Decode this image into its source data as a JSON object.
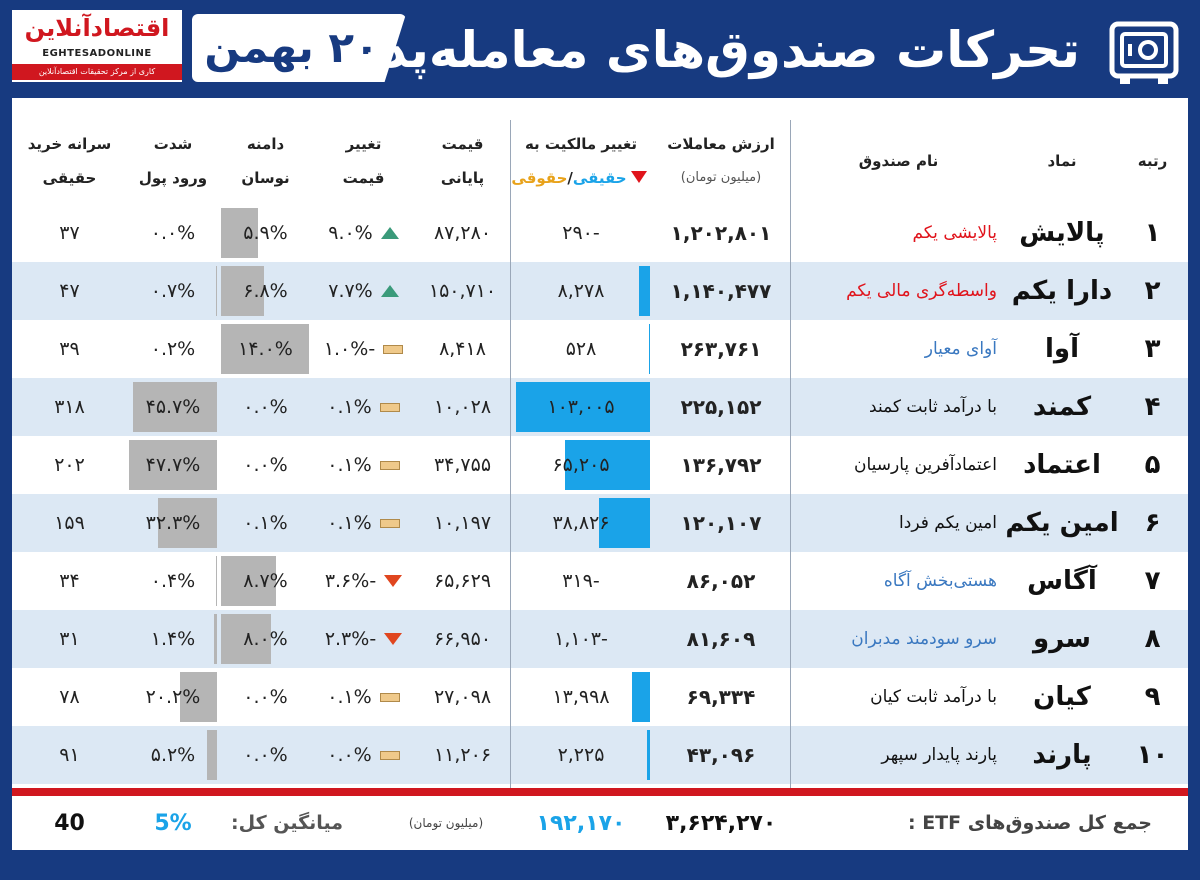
{
  "header": {
    "title": "تحرکات صندوق‌های معامله‌پذیر",
    "date": "۲۰ بهمن",
    "logo": {
      "name": "اقتصادآنلاین",
      "latin": "EGHTESADONLINE",
      "subtitle": "کاری از مرکز تحقیقات اقتصادآنلاین"
    },
    "icon": "safe-icon"
  },
  "columns": {
    "rank": "رتبه",
    "symbol": "نماد",
    "fund_name": "نام صندوق",
    "trade_value_1": "ارزش معاملات",
    "trade_value_2": "(میلیون تومان)",
    "ownership_1": "تغییر مالکیت به",
    "ownership_real": "حقیقی",
    "ownership_sep": "/",
    "ownership_legal": "حقوقی",
    "close_price_1": "قیمت",
    "close_price_2": "پایانی",
    "price_change_1": "تغییر",
    "price_change_2": "قیمت",
    "range_1": "دامنه",
    "range_2": "نوسان",
    "inflow_1": "شدت",
    "inflow_2": "ورود پول",
    "per_capita_1": "سرانه خرید",
    "per_capita_2": "حقیقی"
  },
  "colors": {
    "navy": "#173a80",
    "red": "#d0171f",
    "blue_bar": "#1aa3e8",
    "gray_bar": "#b5b5b5",
    "row_alt": "#dce8f4"
  },
  "rows": [
    {
      "rank": "۱",
      "symbol": "پالایش",
      "name": "پالایشی یکم",
      "name_color": "red",
      "value": "۱,۲۰۲,۸۰۱",
      "ownership": "-۲۹۰",
      "ownership_bar": 0,
      "close": "۸۷,۲۸۰",
      "change": "۹.۰%",
      "trend": "up",
      "range": "۵.۹%",
      "range_bar": 5.9,
      "inflow": "۰.۰%",
      "inflow_bar": 0,
      "per_capita": "۳۷"
    },
    {
      "rank": "۲",
      "symbol": "دارا یکم",
      "name": "واسطه‌گری مالی یکم",
      "name_color": "red",
      "value": "۱,۱۴۰,۴۷۷",
      "ownership": "۸,۲۷۸",
      "ownership_bar": 8278,
      "close": "۱۵۰,۷۱۰",
      "change": "۷.۷%",
      "trend": "up",
      "range": "۶.۸%",
      "range_bar": 6.8,
      "inflow": "۰.۷%",
      "inflow_bar": 0.7,
      "per_capita": "۴۷"
    },
    {
      "rank": "۳",
      "symbol": "آوا",
      "name": "آوای معیار",
      "name_color": "blue",
      "value": "۲۶۳,۷۶۱",
      "ownership": "۵۲۸",
      "ownership_bar": 528,
      "close": "۸,۴۱۸",
      "change": "-۱.۰%",
      "trend": "flat",
      "range": "۱۴.۰%",
      "range_bar": 14.0,
      "inflow": "۰.۲%",
      "inflow_bar": 0.2,
      "per_capita": "۳۹"
    },
    {
      "rank": "۴",
      "symbol": "کمند",
      "name": "با درآمد ثابت کمند",
      "name_color": "black",
      "value": "۲۲۵,۱۵۲",
      "ownership": "۱۰۳,۰۰۵",
      "ownership_bar": 103005,
      "close": "۱۰,۰۲۸",
      "change": "۰.۱%",
      "trend": "flat",
      "range": "۰.۰%",
      "range_bar": 0,
      "inflow": "۴۵.۷%",
      "inflow_bar": 45.7,
      "per_capita": "۳۱۸"
    },
    {
      "rank": "۵",
      "symbol": "اعتماد",
      "name": "اعتمادآفرین پارسیان",
      "name_color": "black",
      "value": "۱۳۶,۷۹۲",
      "ownership": "۶۵,۲۰۵",
      "ownership_bar": 65205,
      "close": "۳۴,۷۵۵",
      "change": "۰.۱%",
      "trend": "flat",
      "range": "۰.۰%",
      "range_bar": 0,
      "inflow": "۴۷.۷%",
      "inflow_bar": 47.7,
      "per_capita": "۲۰۲"
    },
    {
      "rank": "۶",
      "symbol": "امین یکم",
      "name": "امین یکم فردا",
      "name_color": "black",
      "value": "۱۲۰,۱۰۷",
      "ownership": "۳۸,۸۲۶",
      "ownership_bar": 38826,
      "close": "۱۰,۱۹۷",
      "change": "۰.۱%",
      "trend": "flat",
      "range": "۰.۱%",
      "range_bar": 0,
      "inflow": "۳۲.۳%",
      "inflow_bar": 32.3,
      "per_capita": "۱۵۹"
    },
    {
      "rank": "۷",
      "symbol": "آگاس",
      "name": "هستی‌بخش آگاه",
      "name_color": "blue",
      "value": "۸۶,۰۵۲",
      "ownership": "-۳۱۹",
      "ownership_bar": 0,
      "close": "۶۵,۶۲۹",
      "change": "-۳.۶%",
      "trend": "down",
      "range": "۸.۷%",
      "range_bar": 8.7,
      "inflow": "۰.۴%",
      "inflow_bar": 0.4,
      "per_capita": "۳۴"
    },
    {
      "rank": "۸",
      "symbol": "سرو",
      "name": "سرو سودمند مدبران",
      "name_color": "blue",
      "value": "۸۱,۶۰۹",
      "ownership": "-۱,۱۰۳",
      "ownership_bar": 0,
      "close": "۶۶,۹۵۰",
      "change": "-۲.۳%",
      "trend": "down",
      "range": "۸.۰%",
      "range_bar": 8.0,
      "inflow": "۱.۴%",
      "inflow_bar": 1.4,
      "per_capita": "۳۱"
    },
    {
      "rank": "۹",
      "symbol": "کیان",
      "name": "با درآمد ثابت کیان",
      "name_color": "black",
      "value": "۶۹,۳۳۴",
      "ownership": "۱۳,۹۹۸",
      "ownership_bar": 13998,
      "close": "۲۷,۰۹۸",
      "change": "۰.۱%",
      "trend": "flat",
      "range": "۰.۰%",
      "range_bar": 0,
      "inflow": "۲۰.۲%",
      "inflow_bar": 20.2,
      "per_capita": "۷۸"
    },
    {
      "rank": "۱۰",
      "symbol": "پارند",
      "name": "پارند پایدار سپهر",
      "name_color": "black",
      "value": "۴۳,۰۹۶",
      "ownership": "۲,۲۲۵",
      "ownership_bar": 2225,
      "close": "۱۱,۲۰۶",
      "change": "۰.۰%",
      "trend": "flat",
      "range": "۰.۰%",
      "range_bar": 0,
      "inflow": "۵.۲%",
      "inflow_bar": 5.2,
      "per_capita": "۹۱"
    }
  ],
  "footer": {
    "total_label": "جمع کل صندوق‌های ETF :",
    "total_value": "۳,۶۲۴,۲۷۰",
    "ownership_total": "۱۹۲,۱۷۰",
    "unit": "(میلیون تومان)",
    "avg_label": "میانگین کل:",
    "avg_inflow": "5%",
    "avg_per_capita": "40"
  }
}
